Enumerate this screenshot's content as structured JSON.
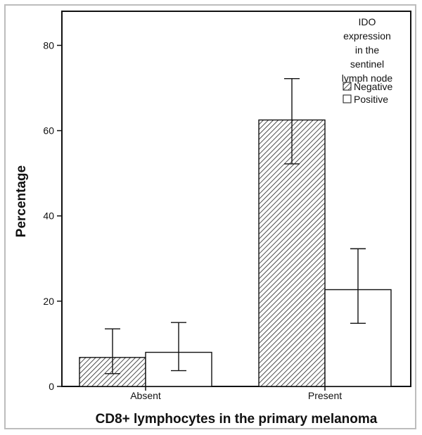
{
  "chart_data": {
    "type": "bar",
    "title": "",
    "xlabel": "CD8+ lymphocytes in the primary melanoma",
    "ylabel": "Percentage",
    "ylim": [
      0,
      88
    ],
    "yticks": [
      0,
      20,
      40,
      60,
      80
    ],
    "categories": [
      "Absent",
      "Present"
    ],
    "legend": {
      "title_lines": [
        "IDO",
        "expression",
        "in the",
        "sentinel",
        "lymph node"
      ],
      "placement": "top-right"
    },
    "series": [
      {
        "name": "Negative",
        "pattern": "hatched",
        "values": [
          6.8,
          62.5
        ],
        "error_low": [
          3.0,
          52.2
        ],
        "error_high": [
          13.5,
          72.2
        ]
      },
      {
        "name": "Positive",
        "pattern": "white",
        "values": [
          8.0,
          22.7
        ],
        "error_low": [
          3.7,
          14.8
        ],
        "error_high": [
          15.0,
          32.3
        ]
      }
    ]
  }
}
